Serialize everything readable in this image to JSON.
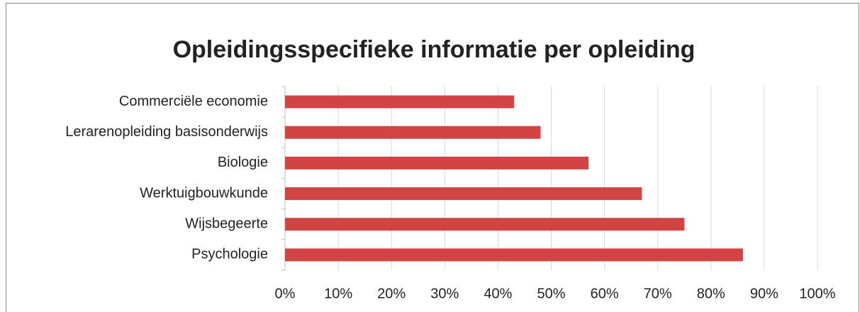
{
  "chart_data": {
    "type": "hbar",
    "title": "Opleidingsspecifieke informatie per opleiding",
    "categories": [
      "Commerciële economie",
      "Lerarenopleiding basisonderwijs",
      "Biologie",
      "Werktuigbouwkunde",
      "Wijsbegeerte",
      "Psychologie"
    ],
    "values": [
      43,
      48,
      57,
      67,
      75,
      86
    ],
    "color": "#d24343",
    "xlim": [
      0,
      100
    ],
    "xticks": [
      {
        "value": 0,
        "label": "0%"
      },
      {
        "value": 10,
        "label": "10%"
      },
      {
        "value": 20,
        "label": "20%"
      },
      {
        "value": 30,
        "label": "30%"
      },
      {
        "value": 40,
        "label": "40%"
      },
      {
        "value": 50,
        "label": "50%"
      },
      {
        "value": 60,
        "label": "60%"
      },
      {
        "value": 70,
        "label": "70%"
      },
      {
        "value": 80,
        "label": "80%"
      },
      {
        "value": 90,
        "label": "90%"
      },
      {
        "value": 100,
        "label": "100%"
      }
    ],
    "grid": true
  }
}
